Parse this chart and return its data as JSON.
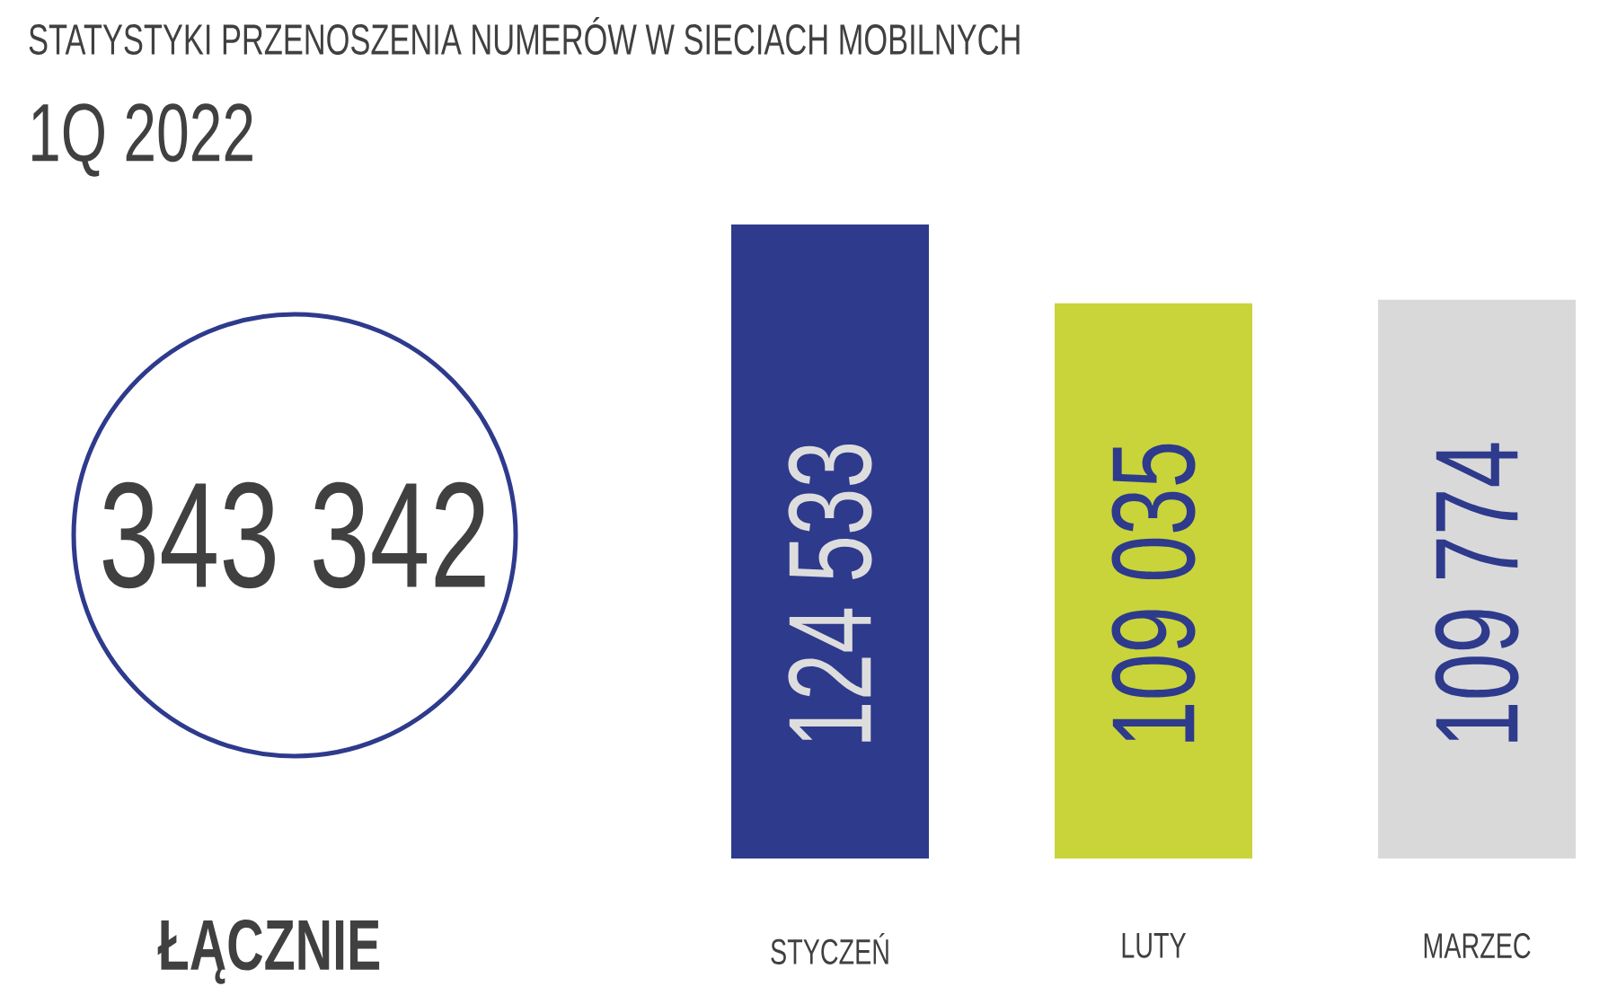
{
  "chart_data": {
    "type": "bar",
    "title": "STATYSTYKI PRZENOSZENIA NUMERÓW W SIECIACH MOBILNYCH",
    "subtitle": "1Q 2022",
    "categories": [
      "STYCZEŃ",
      "LUTY",
      "MARZEC"
    ],
    "values": [
      124533,
      109035,
      109774
    ],
    "value_labels": [
      "124 533",
      "109 035",
      "109 774"
    ],
    "colors": [
      "#2e3a8c",
      "#c8d43a",
      "#d9d9d9"
    ],
    "annotations": [
      "343 342",
      "ŁĄCZNIE"
    ]
  }
}
